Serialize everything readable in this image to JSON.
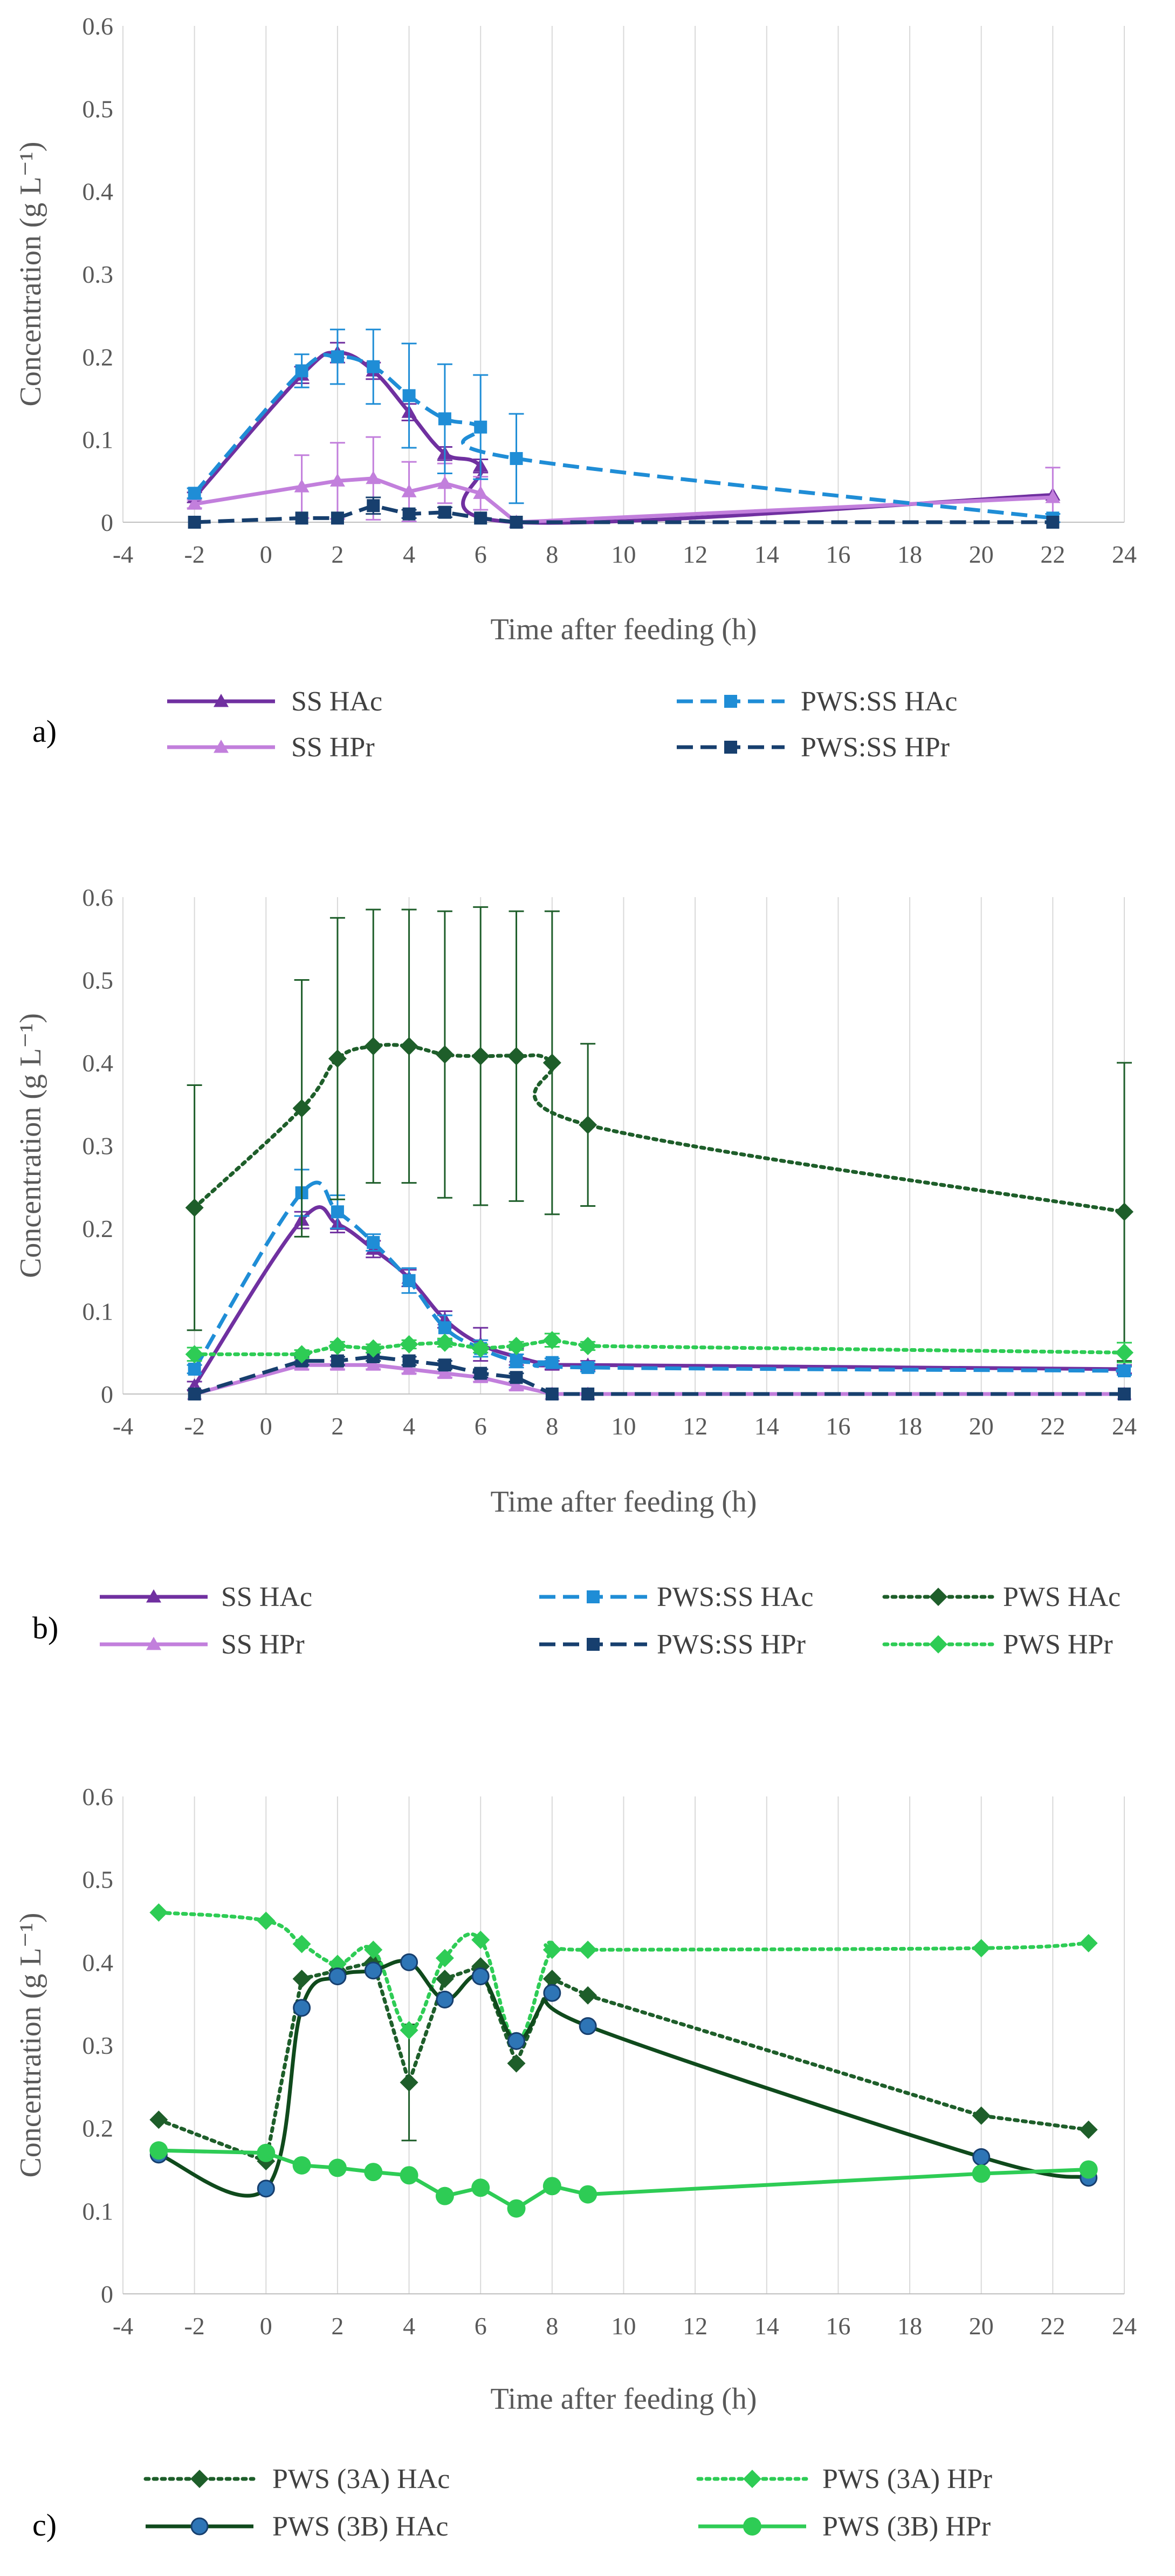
{
  "chart_data": [
    {
      "type": "line",
      "panel_label": "a)",
      "xlabel": "Time after feeding (h)",
      "ylabel": "Concentration (g L⁻¹)",
      "xlim": [
        -4,
        24
      ],
      "ylim": [
        0,
        0.6
      ],
      "xticks": [
        "-4",
        "-2",
        "0",
        "2",
        "4",
        "6",
        "8",
        "10",
        "12",
        "14",
        "16",
        "18",
        "20",
        "22",
        "24"
      ],
      "yticks": [
        "0",
        "0.1",
        "0.2",
        "0.3",
        "0.4",
        "0.5",
        "0.6"
      ],
      "grid": "vertical",
      "legend_position": "bottom",
      "series": [
        {
          "name": "SS HAc",
          "color": "#7030A0",
          "marker": "triangle",
          "dash": "solid",
          "smooth": true,
          "x": [
            -2,
            1,
            2,
            3,
            4,
            5,
            6,
            7,
            22
          ],
          "y": [
            0.03,
            0.178,
            0.205,
            0.183,
            0.133,
            0.083,
            0.068,
            0.0,
            0.033
          ],
          "err": [
            0.006,
            0.01,
            0.012,
            0.01,
            0.01,
            0.008,
            0.008,
            0.0,
            0.004
          ]
        },
        {
          "name": "SS HPr",
          "color": "#C27FDC",
          "marker": "triangle",
          "dash": "solid",
          "smooth": false,
          "x": [
            -2,
            1,
            2,
            3,
            4,
            5,
            6,
            7,
            22
          ],
          "y": [
            0.022,
            0.043,
            0.05,
            0.053,
            0.037,
            0.047,
            0.035,
            0.0,
            0.03
          ],
          "err": [
            0.005,
            0.038,
            0.046,
            0.05,
            0.036,
            0.024,
            0.02,
            0.0,
            0.036
          ]
        },
        {
          "name": "PWS:SS HAc",
          "color": "#1F8DD6",
          "marker": "square",
          "dash": "dashed",
          "smooth": true,
          "x": [
            -2,
            1,
            2,
            3,
            4,
            5,
            6,
            7,
            22
          ],
          "y": [
            0.035,
            0.183,
            0.2,
            0.188,
            0.153,
            0.125,
            0.115,
            0.077,
            0.005
          ],
          "err": [
            0.006,
            0.02,
            0.033,
            0.045,
            0.063,
            0.066,
            0.063,
            0.054,
            0.005
          ]
        },
        {
          "name": "PWS:SS HPr",
          "color": "#173F6E",
          "marker": "square",
          "dash": "dashed",
          "smooth": false,
          "x": [
            -2,
            1,
            2,
            3,
            4,
            5,
            6,
            7,
            22
          ],
          "y": [
            0.0,
            0.005,
            0.005,
            0.02,
            0.01,
            0.012,
            0.005,
            0.0,
            0.0
          ],
          "err": [
            0,
            0.003,
            0.003,
            0.01,
            0.005,
            0.006,
            0.003,
            0,
            0
          ]
        }
      ]
    },
    {
      "type": "line",
      "panel_label": "b)",
      "xlabel": "Time after feeding (h)",
      "ylabel": "Concentration (g L⁻¹)",
      "xlim": [
        -4,
        24
      ],
      "ylim": [
        0,
        0.6
      ],
      "xticks": [
        "-4",
        "-2",
        "0",
        "2",
        "4",
        "6",
        "8",
        "10",
        "12",
        "14",
        "16",
        "18",
        "20",
        "22",
        "24"
      ],
      "yticks": [
        "0",
        "0.1",
        "0.2",
        "0.3",
        "0.4",
        "0.5",
        "0.6"
      ],
      "grid": "vertical",
      "legend_position": "bottom",
      "series": [
        {
          "name": "SS HAc",
          "color": "#7030A0",
          "marker": "triangle",
          "dash": "solid",
          "smooth": true,
          "x": [
            -2,
            1,
            2,
            3,
            4,
            5,
            6,
            7,
            8,
            9,
            24
          ],
          "y": [
            0.01,
            0.21,
            0.205,
            0.175,
            0.14,
            0.09,
            0.06,
            0.045,
            0.035,
            0.035,
            0.03
          ],
          "err": [
            0.005,
            0.01,
            0.01,
            0.01,
            0.01,
            0.01,
            0.02,
            0.01,
            0.005,
            0.005,
            0.005
          ]
        },
        {
          "name": "SS HPr",
          "color": "#C27FDC",
          "marker": "triangle",
          "dash": "solid",
          "smooth": false,
          "x": [
            -2,
            1,
            2,
            3,
            4,
            5,
            6,
            7,
            8,
            9,
            24
          ],
          "y": [
            0.0,
            0.035,
            0.035,
            0.035,
            0.03,
            0.025,
            0.02,
            0.01,
            0.0,
            0.0,
            0.0
          ],
          "err": [
            0,
            0.005,
            0.005,
            0.005,
            0.005,
            0.005,
            0.005,
            0.005,
            0,
            0,
            0
          ]
        },
        {
          "name": "PWS:SS HAc",
          "color": "#1F8DD6",
          "marker": "square",
          "dash": "dashed",
          "smooth": true,
          "x": [
            -2,
            1,
            2,
            3,
            4,
            5,
            6,
            7,
            8,
            9,
            24
          ],
          "y": [
            0.03,
            0.243,
            0.22,
            0.183,
            0.137,
            0.08,
            0.055,
            0.04,
            0.038,
            0.032,
            0.028
          ],
          "err": [
            0.005,
            0.028,
            0.02,
            0.01,
            0.015,
            0.015,
            0.01,
            0.008,
            0.005,
            0.005,
            0.005
          ]
        },
        {
          "name": "PWS:SS HPr",
          "color": "#173F6E",
          "marker": "square",
          "dash": "dashed",
          "smooth": false,
          "x": [
            -2,
            1,
            2,
            3,
            4,
            5,
            6,
            7,
            8,
            9,
            24
          ],
          "y": [
            0.0,
            0.04,
            0.04,
            0.045,
            0.04,
            0.035,
            0.025,
            0.02,
            0.0,
            0.0,
            0.0
          ],
          "err": [
            0,
            0.005,
            0.005,
            0.005,
            0.005,
            0.005,
            0.005,
            0.005,
            0,
            0,
            0
          ]
        },
        {
          "name": "PWS HAc",
          "color": "#1E5E2A",
          "marker": "diamond",
          "dash": "dotted",
          "smooth": true,
          "x": [
            -2,
            1,
            2,
            3,
            4,
            5,
            6,
            7,
            8,
            9,
            24
          ],
          "y": [
            0.225,
            0.345,
            0.405,
            0.42,
            0.42,
            0.41,
            0.408,
            0.408,
            0.4,
            0.325,
            0.22
          ],
          "err": [
            0.148,
            0.155,
            0.17,
            0.165,
            0.165,
            0.173,
            0.18,
            0.175,
            0.183,
            0.098,
            0.18
          ]
        },
        {
          "name": "PWS HPr",
          "color": "#2ECC55",
          "marker": "diamond",
          "dash": "dotted",
          "smooth": false,
          "x": [
            -2,
            1,
            2,
            3,
            4,
            5,
            6,
            7,
            8,
            9,
            24
          ],
          "y": [
            0.048,
            0.048,
            0.058,
            0.055,
            0.06,
            0.062,
            0.055,
            0.058,
            0.065,
            0.058,
            0.05
          ],
          "err": [
            0.008,
            0.005,
            0.005,
            0.005,
            0.005,
            0.005,
            0.005,
            0.005,
            0.008,
            0.005,
            0.012
          ]
        }
      ]
    },
    {
      "type": "line",
      "panel_label": "c)",
      "xlabel": "Time after feeding (h)",
      "ylabel": "Concentration (g L⁻¹)",
      "xlim": [
        -4,
        24
      ],
      "ylim": [
        0,
        0.6
      ],
      "xticks": [
        "-4",
        "-2",
        "0",
        "2",
        "4",
        "6",
        "8",
        "10",
        "12",
        "14",
        "16",
        "18",
        "20",
        "22",
        "24"
      ],
      "yticks": [
        "0",
        "0.1",
        "0.2",
        "0.3",
        "0.4",
        "0.5",
        "0.6"
      ],
      "grid": "vertical",
      "legend_position": "bottom",
      "series": [
        {
          "name": "PWS (3A) HAc",
          "color": "#1E5E2A",
          "marker": "diamond",
          "dash": "dotted",
          "smooth": false,
          "x": [
            -3,
            0,
            1,
            2,
            3,
            4,
            5,
            6,
            7,
            8,
            9,
            20,
            23
          ],
          "y": [
            0.21,
            0.16,
            0.38,
            0.39,
            0.4,
            0.255,
            0.38,
            0.395,
            0.278,
            0.38,
            0.36,
            0.215,
            0.198
          ],
          "err": [
            0,
            0,
            0,
            0,
            0,
            0.07,
            0,
            0,
            0,
            0,
            0,
            0,
            0
          ]
        },
        {
          "name": "PWS (3A) HPr",
          "color": "#2ECC55",
          "marker": "diamond",
          "dash": "dotted",
          "smooth": true,
          "x": [
            -3,
            0,
            1,
            2,
            3,
            4,
            5,
            6,
            7,
            8,
            9,
            20,
            23
          ],
          "y": [
            0.46,
            0.45,
            0.422,
            0.398,
            0.415,
            0.318,
            0.405,
            0.427,
            0.305,
            0.415,
            0.415,
            0.417,
            0.423
          ],
          "err": [
            0,
            0,
            0,
            0,
            0,
            0,
            0,
            0,
            0,
            0,
            0,
            0,
            0
          ]
        },
        {
          "name": "PWS (3B) HAc",
          "color": "#0F4A1C",
          "marker": "circle-blue",
          "dash": "solid",
          "smooth": true,
          "x": [
            -3,
            0,
            1,
            2,
            3,
            4,
            5,
            6,
            7,
            8,
            9,
            20,
            23
          ],
          "y": [
            0.168,
            0.127,
            0.345,
            0.383,
            0.39,
            0.4,
            0.355,
            0.383,
            0.305,
            0.363,
            0.323,
            0.165,
            0.14
          ],
          "err": [
            0,
            0,
            0,
            0,
            0,
            0,
            0,
            0,
            0,
            0,
            0,
            0,
            0
          ]
        },
        {
          "name": "PWS (3B) HPr",
          "color": "#2ECC55",
          "marker": "circle",
          "dash": "solid",
          "smooth": false,
          "x": [
            -3,
            0,
            1,
            2,
            3,
            4,
            5,
            6,
            7,
            8,
            9,
            20,
            23
          ],
          "y": [
            0.173,
            0.17,
            0.155,
            0.152,
            0.147,
            0.143,
            0.118,
            0.128,
            0.103,
            0.13,
            0.12,
            0.145,
            0.15
          ],
          "err": [
            0,
            0,
            0,
            0,
            0,
            0,
            0,
            0,
            0,
            0,
            0,
            0,
            0
          ]
        }
      ]
    }
  ]
}
